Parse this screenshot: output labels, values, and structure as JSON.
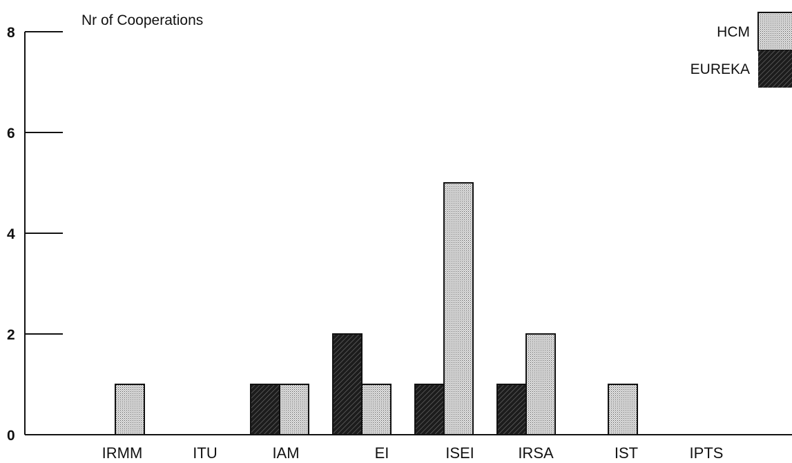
{
  "chart_data": {
    "type": "bar",
    "ylabel": "Nr of Cooperations",
    "xlabel": "",
    "title": "",
    "ylim": [
      0,
      8
    ],
    "yticks": [
      0,
      2,
      4,
      6,
      8
    ],
    "categories": [
      "IRMM",
      "ITU",
      "IAM",
      "EI",
      "ISEI",
      "IRSA",
      "IST",
      "IPTS"
    ],
    "series": [
      {
        "name": "EUREKA",
        "values": [
          0,
          0,
          1,
          2,
          1,
          1,
          0,
          0
        ],
        "pattern": "dark-hatched"
      },
      {
        "name": "HCM",
        "values": [
          1,
          0,
          1,
          1,
          5,
          2,
          1,
          0
        ],
        "pattern": "light-dotted"
      }
    ],
    "legend": {
      "placement": "top-right",
      "order": [
        "HCM",
        "EUREKA"
      ]
    },
    "grid": false,
    "colors": {
      "eureka": "#2a2a2a",
      "hcm": "#c9c9c9"
    }
  }
}
